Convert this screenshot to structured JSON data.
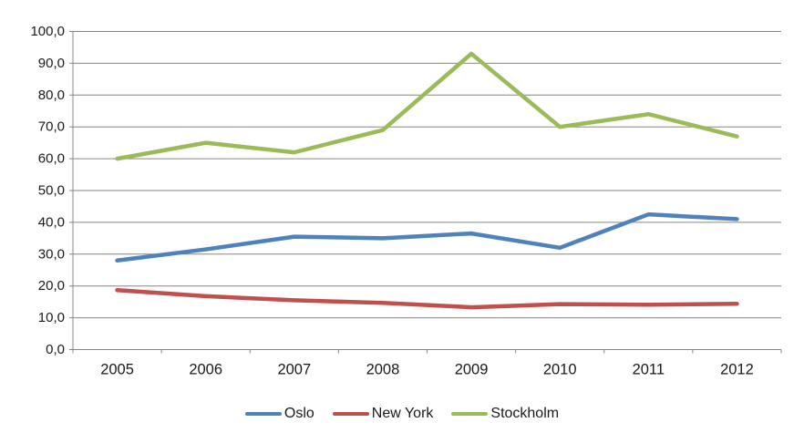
{
  "chart_data": {
    "type": "line",
    "title": "",
    "xlabel": "",
    "ylabel": "",
    "categories": [
      "2005",
      "2006",
      "2007",
      "2008",
      "2009",
      "2010",
      "2011",
      "2012"
    ],
    "series": [
      {
        "name": "Oslo",
        "color": "#4F81BD",
        "values": [
          28.0,
          31.5,
          35.5,
          35.0,
          36.5,
          32.0,
          42.5,
          41.0
        ]
      },
      {
        "name": "New York",
        "color": "#C0504D",
        "values": [
          18.7,
          16.8,
          15.5,
          14.7,
          13.3,
          14.3,
          14.1,
          14.4
        ]
      },
      {
        "name": "Stockholm",
        "color": "#9BBB59",
        "values": [
          60.0,
          65.0,
          62.0,
          69.0,
          93.0,
          70.0,
          74.0,
          67.0
        ]
      }
    ],
    "ylim": [
      0,
      100
    ],
    "ytick_step": 10,
    "ytick_labels": [
      "0,0",
      "10,0",
      "20,0",
      "30,0",
      "40,0",
      "50,0",
      "60,0",
      "70,0",
      "80,0",
      "90,0",
      "100,0"
    ],
    "grid": true,
    "legend_position": "bottom-center",
    "axis_color": "#868686",
    "text_color": "#1a1a1a"
  }
}
